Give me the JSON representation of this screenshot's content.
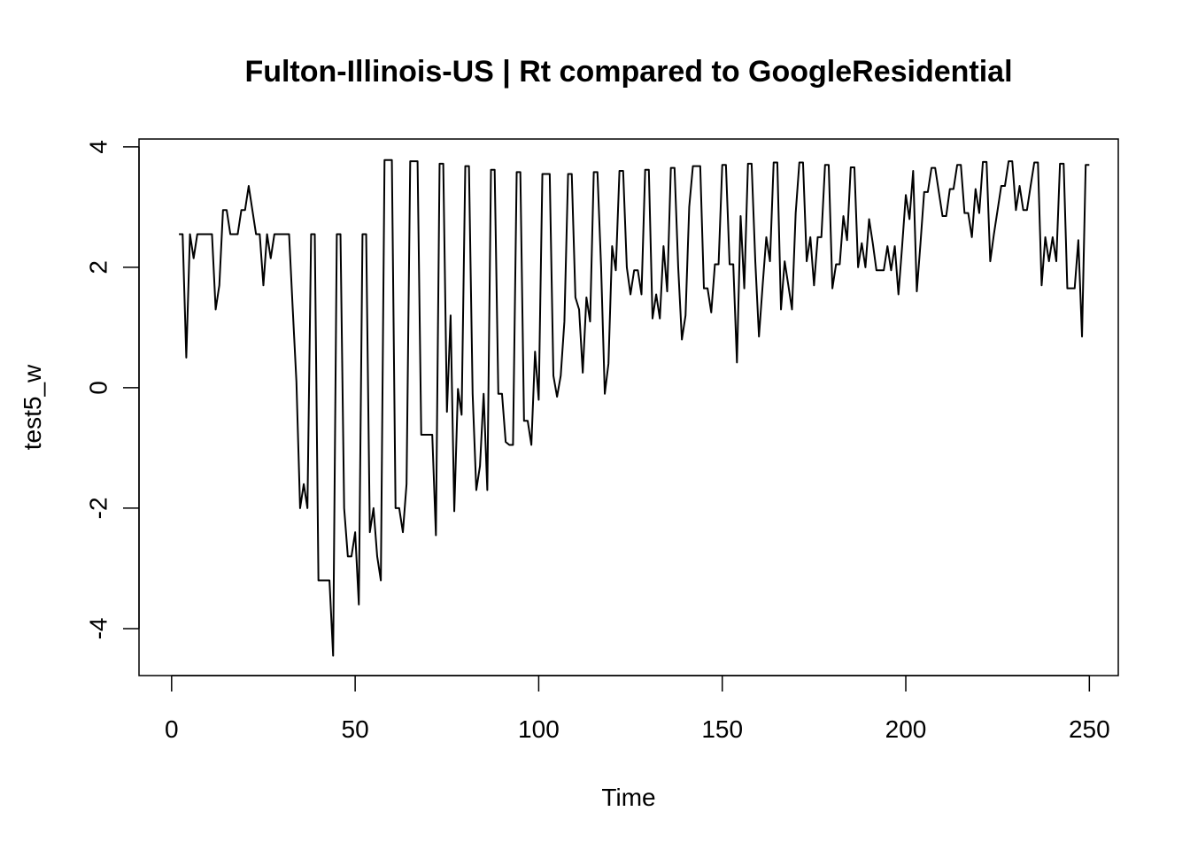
{
  "chart_data": {
    "type": "line",
    "title": "Fulton-Illinois-US | Rt compared to GoogleResidential",
    "xlabel": "Time",
    "ylabel": "test5_w",
    "xlim": [
      1,
      248
    ],
    "ylim": [
      -4.45,
      3.8
    ],
    "x_ticks": [
      0,
      50,
      100,
      150,
      200,
      250
    ],
    "x_tick_labels": [
      "0",
      "50",
      "100",
      "150",
      "200",
      "250"
    ],
    "y_ticks": [
      -4,
      -2,
      0,
      2,
      4
    ],
    "y_tick_labels": [
      "-4",
      "-2",
      "0",
      "2",
      "4"
    ],
    "grid": false,
    "legend": "none",
    "line_color": "#000000",
    "series": [
      {
        "x_start": 2,
        "values": [
          2.55,
          2.55,
          0.5,
          2.55,
          2.15,
          2.55,
          2.55,
          2.55,
          2.55,
          2.55,
          1.3,
          1.7,
          2.95,
          2.95,
          2.55,
          2.55,
          2.55,
          2.95,
          2.95,
          3.35,
          2.95,
          2.55,
          2.55,
          1.7,
          2.55,
          2.15,
          2.55,
          2.55,
          2.55,
          2.55,
          2.55,
          1.3,
          0.1,
          -2.0,
          -1.6,
          -2.0,
          2.55,
          2.55,
          -3.2,
          -3.2,
          -3.2,
          -3.2,
          -4.45,
          2.55,
          2.55,
          -2.0,
          -2.8,
          -2.8,
          -2.4,
          -3.6,
          2.55,
          2.55,
          -2.4,
          -2.0,
          -2.8,
          -3.2,
          3.78,
          3.78,
          3.78,
          -2.0,
          -2.0,
          -2.4,
          -1.6,
          3.76,
          3.76,
          3.76,
          -0.78,
          -0.78,
          -0.78,
          -0.78,
          -2.45,
          3.72,
          3.72,
          -0.4,
          1.2,
          -2.05,
          -0.02,
          -0.45,
          3.68,
          3.68,
          -0.1,
          -1.7,
          -1.3,
          -0.1,
          -1.7,
          3.62,
          3.62,
          -0.1,
          -0.1,
          -0.9,
          -0.95,
          -0.95,
          3.58,
          3.58,
          -0.55,
          -0.55,
          -0.95,
          0.6,
          -0.2,
          3.55,
          3.55,
          3.55,
          0.2,
          -0.15,
          0.2,
          1.1,
          3.55,
          3.55,
          1.5,
          1.3,
          0.25,
          1.5,
          1.1,
          3.58,
          3.58,
          2.0,
          -0.1,
          0.4,
          2.35,
          1.95,
          3.6,
          3.6,
          2.0,
          1.55,
          1.95,
          1.95,
          1.55,
          3.62,
          3.62,
          1.15,
          1.55,
          1.15,
          2.35,
          1.6,
          3.65,
          3.65,
          2.0,
          0.8,
          1.2,
          3.0,
          3.68,
          3.68,
          3.68,
          1.65,
          1.65,
          1.25,
          2.05,
          2.05,
          3.7,
          3.7,
          2.05,
          2.05,
          0.42,
          2.85,
          1.65,
          3.72,
          3.72,
          2.1,
          0.85,
          1.7,
          2.5,
          2.1,
          3.74,
          3.74,
          1.3,
          2.1,
          1.7,
          1.3,
          2.9,
          3.74,
          3.74,
          2.1,
          2.5,
          1.7,
          2.5,
          2.5,
          3.7,
          3.7,
          1.65,
          2.05,
          2.05,
          2.85,
          2.45,
          3.66,
          3.66,
          2.0,
          2.4,
          2.0,
          2.8,
          2.4,
          1.95,
          1.95,
          1.95,
          2.35,
          1.95,
          2.35,
          1.55,
          2.35,
          3.2,
          2.8,
          3.6,
          1.6,
          2.4,
          3.25,
          3.25,
          3.65,
          3.65,
          3.25,
          2.85,
          2.85,
          3.3,
          3.3,
          3.7,
          3.7,
          2.9,
          2.9,
          2.5,
          3.3,
          2.9,
          3.75,
          3.75,
          2.1,
          2.55,
          2.95,
          3.35,
          3.35,
          3.76,
          3.76,
          2.95,
          3.35,
          2.95,
          2.95,
          3.35,
          3.74,
          3.74,
          1.7,
          2.5,
          2.1,
          2.5,
          2.1,
          3.72,
          3.72,
          1.65,
          1.65,
          1.65,
          2.45,
          0.85,
          3.7,
          3.7
        ]
      }
    ]
  }
}
